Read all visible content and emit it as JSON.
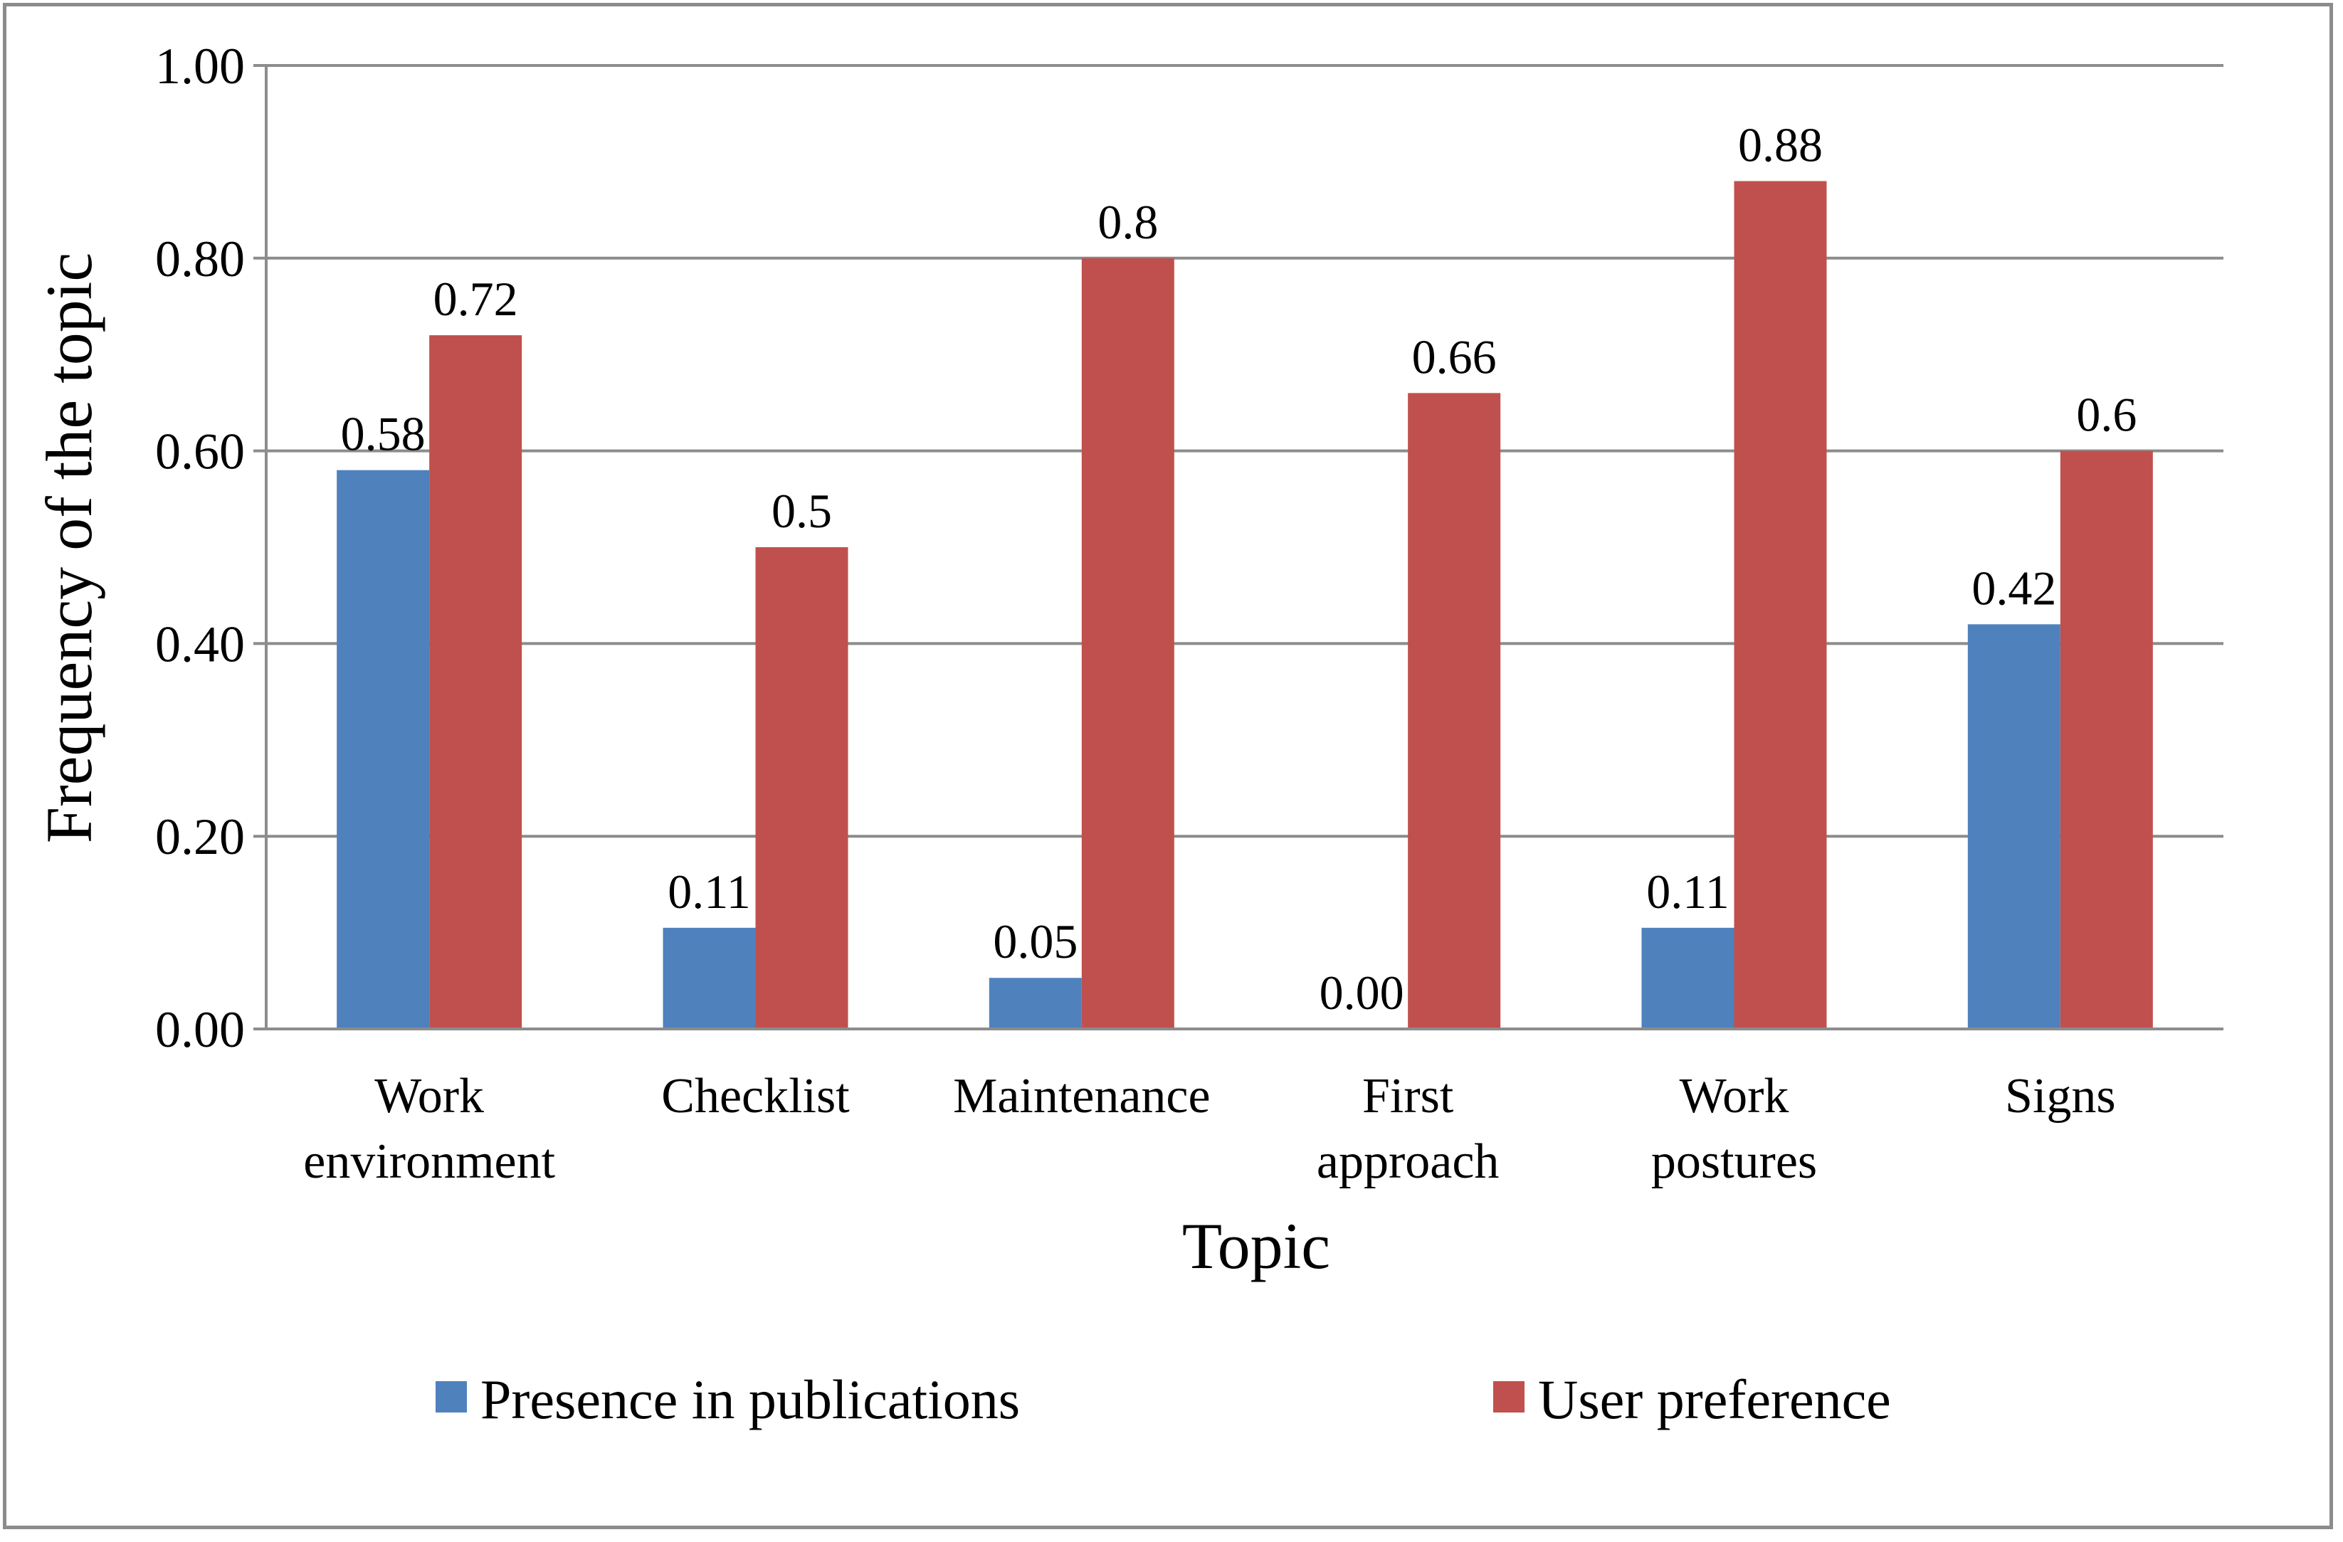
{
  "chart_data": {
    "type": "bar",
    "title": "",
    "xlabel": "Topic",
    "ylabel": "Frequency of the topic",
    "ylim": [
      0,
      1.0
    ],
    "yticks": [
      "0.00",
      "0.20",
      "0.40",
      "0.60",
      "0.80",
      "1.00"
    ],
    "grid": true,
    "legend_position": "bottom",
    "categories": [
      [
        "Work",
        "environment"
      ],
      [
        "Checklist"
      ],
      [
        "Maintenance"
      ],
      [
        "First",
        "approach"
      ],
      [
        "Work",
        "postures"
      ],
      [
        "Signs"
      ]
    ],
    "series": [
      {
        "name": "Presence in publications",
        "color": "#4f81bd",
        "values": [
          0.58,
          0.105,
          0.053,
          0.0,
          0.105,
          0.42
        ],
        "labels": [
          "0.58",
          "0.11",
          "0.05",
          "0.00",
          "0.11",
          "0.42"
        ]
      },
      {
        "name": "User preference",
        "color": "#c0504d",
        "values": [
          0.72,
          0.5,
          0.8,
          0.66,
          0.88,
          0.6
        ],
        "labels": [
          "0.72",
          "0.5",
          "0.8",
          "0.66",
          "0.88",
          "0.6"
        ]
      }
    ]
  }
}
